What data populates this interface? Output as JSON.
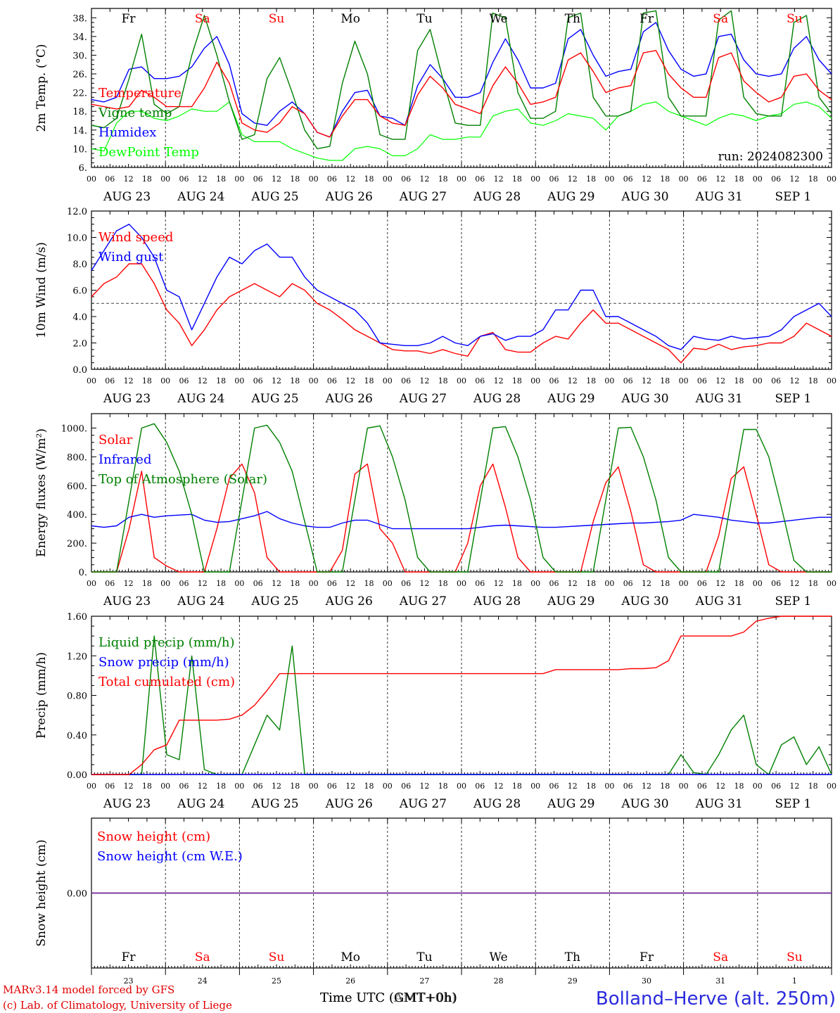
{
  "chart_data": [
    {
      "type": "line",
      "ylabel": "2m Temp. (°C)",
      "ylim": [
        6,
        40
      ],
      "yticks": [
        6,
        10,
        14,
        18,
        22,
        26,
        30,
        34,
        38
      ],
      "yticklabels": [
        "6.",
        "10.",
        "14.",
        "18.",
        "22.",
        "26.",
        "30.",
        "34.",
        "38."
      ],
      "weekdays": [
        "Fr",
        "Sa",
        "Su",
        "Mo",
        "Tu",
        "We",
        "Th",
        "Fr",
        "Sa",
        "Su"
      ],
      "run_label": "run: 2024082300",
      "series": [
        {
          "name": "Temperature",
          "color": "#ff0000",
          "values": [
            19.5,
            19.0,
            18.5,
            19.0,
            22.5,
            21.0,
            19.0,
            19.0,
            19.0,
            23.0,
            28.5,
            24.0,
            15.5,
            14.0,
            13.5,
            15.5,
            19.0,
            17.5,
            13.5,
            12.5,
            17.0,
            20.5,
            20.5,
            17.0,
            15.5,
            15.0,
            21.5,
            25.5,
            23.0,
            19.5,
            18.5,
            17.5,
            23.5,
            27.5,
            24.0,
            19.5,
            20.0,
            21.0,
            29.0,
            30.5,
            26.5,
            22.0,
            23.0,
            23.5,
            30.5,
            31.0,
            26.0,
            23.0,
            21.0,
            21.0,
            29.5,
            30.5,
            24.5,
            22.0,
            20.0,
            21.0,
            25.5,
            26.0,
            22.5,
            20.5
          ]
        },
        {
          "name": "Vigne temp",
          "color": "#008000",
          "values": [
            15.0,
            14.5,
            16.5,
            25.0,
            34.5,
            19.5,
            17.5,
            19.0,
            30.0,
            38.5,
            30.0,
            20.0,
            12.0,
            13.0,
            25.0,
            29.5,
            22.0,
            14.0,
            10.0,
            10.5,
            24.0,
            33.0,
            26.0,
            13.0,
            12.0,
            12.0,
            31.0,
            35.5,
            25.0,
            15.5,
            15.0,
            15.0,
            39.0,
            38.0,
            22.0,
            16.5,
            16.5,
            18.0,
            38.0,
            39.0,
            21.0,
            17.0,
            17.0,
            18.0,
            39.0,
            39.5,
            21.0,
            17.0,
            17.0,
            17.0,
            37.5,
            39.5,
            21.0,
            17.5,
            17.0,
            17.0,
            37.0,
            38.5,
            21.0,
            17.5
          ]
        },
        {
          "name": "Humidex",
          "color": "#0000ff",
          "values": [
            20.5,
            20.0,
            21.0,
            27.0,
            27.5,
            25.0,
            25.0,
            25.5,
            27.5,
            31.5,
            34.0,
            28.0,
            17.5,
            15.5,
            15.0,
            18.0,
            20.0,
            17.5,
            13.5,
            12.5,
            18.0,
            22.0,
            22.5,
            17.0,
            16.5,
            15.0,
            23.5,
            28.0,
            25.0,
            21.0,
            21.0,
            22.0,
            28.5,
            33.5,
            29.0,
            23.0,
            23.0,
            24.0,
            33.5,
            35.5,
            30.0,
            25.5,
            26.5,
            27.0,
            35.0,
            37.0,
            31.0,
            27.0,
            25.5,
            26.0,
            34.0,
            34.5,
            29.0,
            26.0,
            25.5,
            26.0,
            31.5,
            34.0,
            29.0,
            26.0
          ]
        },
        {
          "name": "DewPoint Temp",
          "color": "#00ff00",
          "values": [
            10.0,
            9.5,
            15.5,
            18.0,
            18.0,
            16.5,
            16.0,
            17.0,
            18.5,
            18.0,
            18.0,
            20.0,
            13.0,
            11.5,
            11.5,
            11.5,
            10.0,
            9.0,
            8.0,
            7.5,
            7.5,
            10.0,
            10.5,
            10.0,
            8.5,
            8.5,
            10.0,
            13.0,
            12.0,
            12.0,
            12.5,
            12.5,
            17.0,
            18.0,
            18.5,
            15.5,
            15.0,
            16.0,
            17.5,
            17.0,
            16.5,
            14.0,
            17.0,
            18.0,
            19.5,
            20.0,
            18.0,
            17.0,
            16.0,
            15.0,
            16.5,
            17.5,
            17.0,
            16.0,
            17.0,
            17.5,
            19.5,
            20.0,
            19.0,
            16.5
          ]
        }
      ]
    },
    {
      "type": "line",
      "ylabel": "10m Wind (m/s)",
      "ylim": [
        0,
        12
      ],
      "yticks": [
        0,
        2,
        4,
        6,
        8,
        10,
        12
      ],
      "yticklabels": [
        "0.0",
        "2.0",
        "4.0",
        "6.0",
        "8.0",
        "10.0",
        "12.0"
      ],
      "reference_line": 5,
      "series": [
        {
          "name": "Wind speed",
          "color": "#ff0000",
          "values": [
            5.5,
            6.5,
            7.0,
            8.0,
            8.0,
            6.5,
            4.5,
            3.5,
            1.8,
            3.0,
            4.5,
            5.5,
            6.0,
            6.5,
            6.0,
            5.5,
            6.5,
            6.0,
            5.0,
            4.5,
            3.8,
            3.0,
            2.5,
            2.0,
            1.5,
            1.4,
            1.4,
            1.2,
            1.5,
            1.2,
            1.0,
            2.5,
            2.8,
            1.5,
            1.3,
            1.3,
            2.0,
            2.5,
            2.3,
            3.5,
            4.5,
            3.5,
            3.5,
            3.0,
            2.5,
            2.0,
            1.5,
            0.5,
            1.6,
            1.5,
            1.9,
            1.5,
            1.7,
            1.8,
            2.0,
            2.0,
            2.5,
            3.5,
            3.0,
            2.5
          ]
        },
        {
          "name": "Wind gust",
          "color": "#0000ff",
          "values": [
            7.5,
            9.0,
            10.5,
            11.0,
            10.0,
            8.5,
            6.0,
            5.5,
            3.0,
            5.0,
            7.0,
            8.5,
            8.0,
            9.0,
            9.5,
            8.5,
            8.5,
            7.0,
            6.0,
            5.5,
            5.0,
            4.5,
            3.5,
            2.0,
            1.9,
            1.8,
            1.8,
            2.0,
            2.5,
            2.0,
            1.8,
            2.5,
            2.7,
            2.2,
            2.5,
            2.5,
            3.0,
            4.5,
            4.5,
            6.0,
            6.0,
            4.0,
            4.0,
            3.5,
            3.0,
            2.5,
            1.8,
            1.5,
            2.5,
            2.3,
            2.2,
            2.5,
            2.3,
            2.4,
            2.5,
            3.0,
            4.0,
            4.5,
            5.0,
            4.0
          ]
        }
      ]
    },
    {
      "type": "line",
      "ylabel": "Energy fluxes (W/m²)",
      "ylim": [
        0,
        1100
      ],
      "yticks": [
        0,
        200,
        400,
        600,
        800,
        1000
      ],
      "yticklabels": [
        "0.",
        "200.",
        "400.",
        "600.",
        "800.",
        "1000."
      ],
      "series": [
        {
          "name": "Solar",
          "color": "#ff0000",
          "values": [
            0,
            0,
            0,
            300,
            700,
            100,
            40,
            0,
            0,
            0,
            300,
            650,
            750,
            550,
            100,
            0,
            0,
            0,
            0,
            0,
            150,
            680,
            750,
            300,
            200,
            0,
            0,
            0,
            0,
            0,
            200,
            600,
            750,
            450,
            100,
            0,
            0,
            0,
            0,
            0,
            350,
            620,
            730,
            420,
            50,
            0,
            0,
            0,
            0,
            0,
            250,
            650,
            730,
            400,
            50,
            0,
            0,
            0,
            0,
            0
          ]
        },
        {
          "name": "Infrared",
          "color": "#0000ff",
          "values": [
            320,
            310,
            320,
            380,
            400,
            380,
            390,
            395,
            400,
            360,
            345,
            350,
            370,
            390,
            420,
            370,
            340,
            320,
            310,
            310,
            340,
            360,
            360,
            330,
            300,
            300,
            300,
            300,
            300,
            300,
            300,
            310,
            320,
            325,
            320,
            315,
            310,
            310,
            315,
            320,
            325,
            330,
            335,
            340,
            340,
            345,
            350,
            360,
            400,
            390,
            380,
            360,
            350,
            340,
            340,
            350,
            360,
            370,
            380,
            380
          ]
        },
        {
          "name": "Top of Atmosphere (Solar)",
          "color": "#008000",
          "values": [
            0,
            0,
            0,
            500,
            1000,
            1030,
            900,
            700,
            400,
            0,
            0,
            0,
            500,
            1000,
            1020,
            900,
            700,
            350,
            0,
            0,
            0,
            500,
            1000,
            1015,
            800,
            500,
            100,
            0,
            0,
            0,
            0,
            500,
            1000,
            1010,
            800,
            500,
            100,
            0,
            0,
            0,
            0,
            500,
            1000,
            1005,
            800,
            500,
            100,
            0,
            0,
            0,
            0,
            500,
            990,
            990,
            800,
            450,
            80,
            0,
            0,
            0
          ]
        }
      ]
    },
    {
      "type": "line",
      "ylabel": "Precip (mm/h)",
      "ylim": [
        0,
        1.6
      ],
      "yticks": [
        0,
        0.4,
        0.8,
        1.2,
        1.6
      ],
      "yticklabels": [
        "0.00",
        "0.40",
        "0.80",
        "1.20",
        "1.60"
      ],
      "series": [
        {
          "name": "Liquid precip (mm/h)",
          "color": "#008000",
          "values": [
            0,
            0,
            0,
            0,
            0,
            1.4,
            0.2,
            0.15,
            1.2,
            0.05,
            0,
            0,
            0,
            0.3,
            0.6,
            0.45,
            1.3,
            0,
            0,
            0,
            0,
            0,
            0,
            0,
            0,
            0,
            0,
            0,
            0,
            0,
            0,
            0,
            0,
            0,
            0,
            0,
            0,
            0,
            0,
            0,
            0,
            0,
            0,
            0,
            0,
            0,
            0,
            0.2,
            0.02,
            0,
            0.2,
            0.45,
            0.6,
            0.1,
            0,
            0.3,
            0.38,
            0.1,
            0.28,
            0
          ]
        },
        {
          "name": "Snow precip (mm/h)",
          "color": "#0000ff",
          "values": [
            0,
            0,
            0,
            0,
            0,
            0,
            0,
            0,
            0,
            0,
            0,
            0,
            0,
            0,
            0,
            0,
            0,
            0,
            0,
            0,
            0,
            0,
            0,
            0,
            0,
            0,
            0,
            0,
            0,
            0,
            0,
            0,
            0,
            0,
            0,
            0,
            0,
            0,
            0,
            0,
            0,
            0,
            0,
            0,
            0,
            0,
            0,
            0,
            0,
            0,
            0,
            0,
            0,
            0,
            0,
            0,
            0,
            0,
            0,
            0
          ]
        },
        {
          "name": "Total cumulated (cm)",
          "color": "#ff0000",
          "values": [
            0,
            0,
            0,
            0,
            0.1,
            0.25,
            0.3,
            0.55,
            0.55,
            0.55,
            0.55,
            0.56,
            0.6,
            0.7,
            0.85,
            1.02,
            1.02,
            1.02,
            1.02,
            1.02,
            1.02,
            1.02,
            1.02,
            1.02,
            1.02,
            1.02,
            1.02,
            1.02,
            1.02,
            1.02,
            1.02,
            1.02,
            1.02,
            1.02,
            1.02,
            1.02,
            1.02,
            1.06,
            1.06,
            1.06,
            1.06,
            1.06,
            1.06,
            1.07,
            1.07,
            1.08,
            1.15,
            1.4,
            1.4,
            1.4,
            1.4,
            1.4,
            1.44,
            1.55,
            1.58,
            1.6,
            1.6,
            1.6,
            1.6,
            1.6
          ]
        }
      ]
    },
    {
      "type": "line",
      "ylabel": "Snow height (cm)",
      "ylim": [
        -1,
        1
      ],
      "yticks": [
        0
      ],
      "yticklabels": [
        "0.00"
      ],
      "series": [
        {
          "name": "Snow height (cm)",
          "color": "#ff0000",
          "values": [
            0,
            0
          ]
        },
        {
          "name": "Snow height (cm W.E.)",
          "color": "#0000ff",
          "values": [
            0,
            0
          ]
        }
      ]
    }
  ],
  "x_axis": {
    "hour_labels": [
      "00",
      "06",
      "12",
      "18"
    ],
    "date_labels": [
      "AUG 23",
      "AUG 24",
      "AUG 25",
      "AUG 26",
      "AUG 27",
      "AUG 28",
      "AUG 29",
      "AUG 30",
      "AUG 31",
      "SEP  1"
    ],
    "day_numbers": [
      "23",
      "24",
      "25",
      "26",
      "27",
      "28",
      "29",
      "30",
      "31",
      "1"
    ],
    "bottom_weekdays": [
      "Fr",
      "Sa",
      "Su",
      "Mo",
      "Tu",
      "We",
      "Th",
      "Fr",
      "Sa",
      "Su"
    ],
    "weekend_color": "#ff0000",
    "weekday_color": "#000000"
  },
  "footer": {
    "model_line1": "MARv3.14 model forced by GFS",
    "model_line2": "(c) Lab. of Climatology, University of Liege",
    "time_label_a": "Time UTC (GMT+0h)",
    "time_label_b": "Time UTC (AMT+0h)",
    "station": "Bolland–Herve (alt. 250m)"
  }
}
